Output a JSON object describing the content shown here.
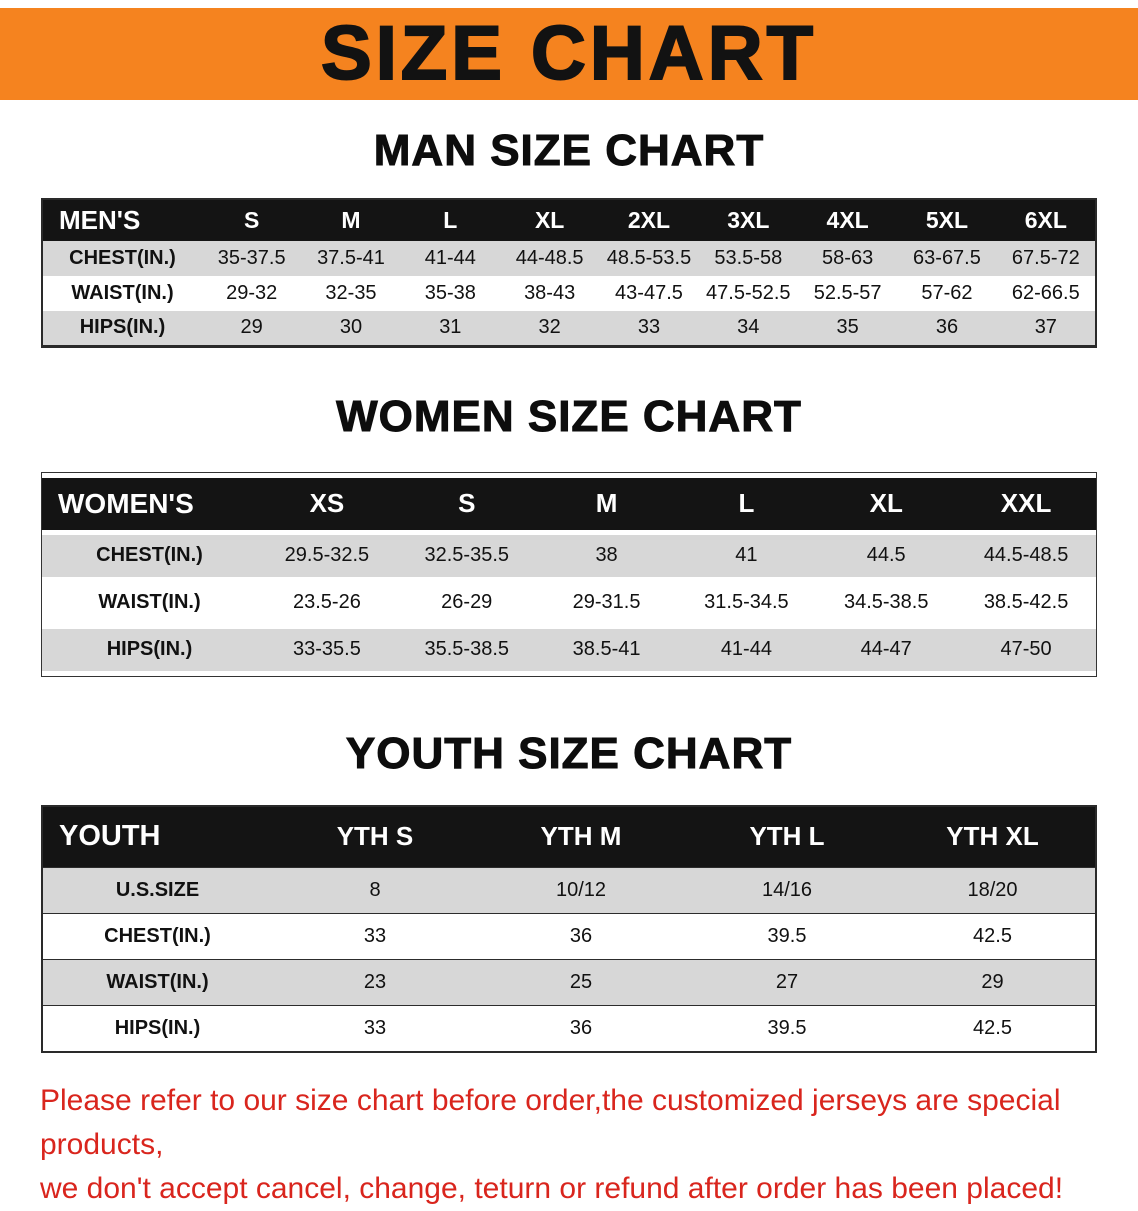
{
  "banner": {
    "title": "SIZE CHART"
  },
  "colors": {
    "banner_bg": "#f5831f",
    "header_bg": "#141414",
    "stripe": "#d7d7d7",
    "disclaimer": "#d9251d"
  },
  "sections": [
    {
      "heading": "MAN SIZE CHART",
      "table": {
        "label_header": "MEN'S",
        "size_headers": [
          "S",
          "M",
          "L",
          "XL",
          "2XL",
          "3XL",
          "4XL",
          "5XL",
          "6XL"
        ],
        "rows": [
          {
            "label": "CHEST(IN.)",
            "values": [
              "35-37.5",
              "37.5-41",
              "41-44",
              "44-48.5",
              "48.5-53.5",
              "53.5-58",
              "58-63",
              "63-67.5",
              "67.5-72"
            ]
          },
          {
            "label": "WAIST(IN.)",
            "values": [
              "29-32",
              "32-35",
              "35-38",
              "38-43",
              "43-47.5",
              "47.5-52.5",
              "52.5-57",
              "57-62",
              "62-66.5"
            ]
          },
          {
            "label": "HIPS(IN.)",
            "values": [
              "29",
              "30",
              "31",
              "32",
              "33",
              "34",
              "35",
              "36",
              "37"
            ]
          }
        ]
      }
    },
    {
      "heading": "WOMEN SIZE CHART",
      "table": {
        "label_header": "WOMEN'S",
        "size_headers": [
          "XS",
          "S",
          "M",
          "L",
          "XL",
          "XXL"
        ],
        "rows": [
          {
            "label": "CHEST(IN.)",
            "values": [
              "29.5-32.5",
              "32.5-35.5",
              "38",
              "41",
              "44.5",
              "44.5-48.5"
            ]
          },
          {
            "label": "WAIST(IN.)",
            "values": [
              "23.5-26",
              "26-29",
              "29-31.5",
              "31.5-34.5",
              "34.5-38.5",
              "38.5-42.5"
            ]
          },
          {
            "label": "HIPS(IN.)",
            "values": [
              "33-35.5",
              "35.5-38.5",
              "38.5-41",
              "41-44",
              "44-47",
              "47-50"
            ]
          }
        ]
      }
    },
    {
      "heading": "YOUTH SIZE CHART",
      "table": {
        "label_header": "YOUTH",
        "size_headers": [
          "YTH S",
          "YTH M",
          "YTH L",
          "YTH XL"
        ],
        "rows": [
          {
            "label": "U.S.SIZE",
            "values": [
              "8",
              "10/12",
              "14/16",
              "18/20"
            ]
          },
          {
            "label": "CHEST(IN.)",
            "values": [
              "33",
              "36",
              "39.5",
              "42.5"
            ]
          },
          {
            "label": "WAIST(IN.)",
            "values": [
              "23",
              "25",
              "27",
              "29"
            ]
          },
          {
            "label": "HIPS(IN.)",
            "values": [
              "33",
              "36",
              "39.5",
              "42.5"
            ]
          }
        ]
      }
    }
  ],
  "disclaimer": {
    "lines": [
      "Please refer to our size chart before order,the customized jerseys are special products,",
      "we don't accept cancel, change, teturn or refund after order has been placed!"
    ]
  }
}
